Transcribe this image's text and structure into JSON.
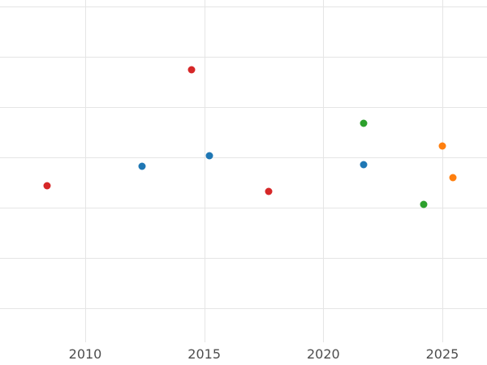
{
  "chart_data": {
    "type": "scatter",
    "title": "",
    "xlabel": "",
    "ylabel": "",
    "x_tick_labels": [
      "2010",
      "2015",
      "2020",
      "2025"
    ],
    "x_tick_values": [
      2010,
      2015,
      2020,
      2025
    ],
    "y_tick_labels": [],
    "y_note": "y axis has no visible tick labels; y values estimated in gridline units (0 = lowest visible horizontal gridline, spacing = 1 gridline)",
    "xlim": [
      2006.42,
      2026.88
    ],
    "ylim": [
      -1.13,
      6.13
    ],
    "grid": "on",
    "legend": "none",
    "y_gridline_units": [
      0,
      1,
      2,
      3,
      4,
      5,
      6
    ],
    "series": [
      {
        "name": "red-series",
        "color": "#d62728",
        "points": [
          {
            "x": 2008.4,
            "y": 2.44
          },
          {
            "x": 2014.45,
            "y": 4.74
          },
          {
            "x": 2017.7,
            "y": 2.32
          }
        ]
      },
      {
        "name": "blue-series",
        "color": "#1f77b4",
        "points": [
          {
            "x": 2012.4,
            "y": 2.82
          },
          {
            "x": 2015.2,
            "y": 3.03
          },
          {
            "x": 2021.7,
            "y": 2.85
          }
        ]
      },
      {
        "name": "green-series",
        "color": "#2ca02c",
        "points": [
          {
            "x": 2021.7,
            "y": 3.68
          },
          {
            "x": 2024.2,
            "y": 2.06
          }
        ]
      },
      {
        "name": "orange-series",
        "color": "#ff7f0e",
        "points": [
          {
            "x": 2025.0,
            "y": 3.23
          },
          {
            "x": 2025.45,
            "y": 2.6
          }
        ]
      }
    ]
  }
}
